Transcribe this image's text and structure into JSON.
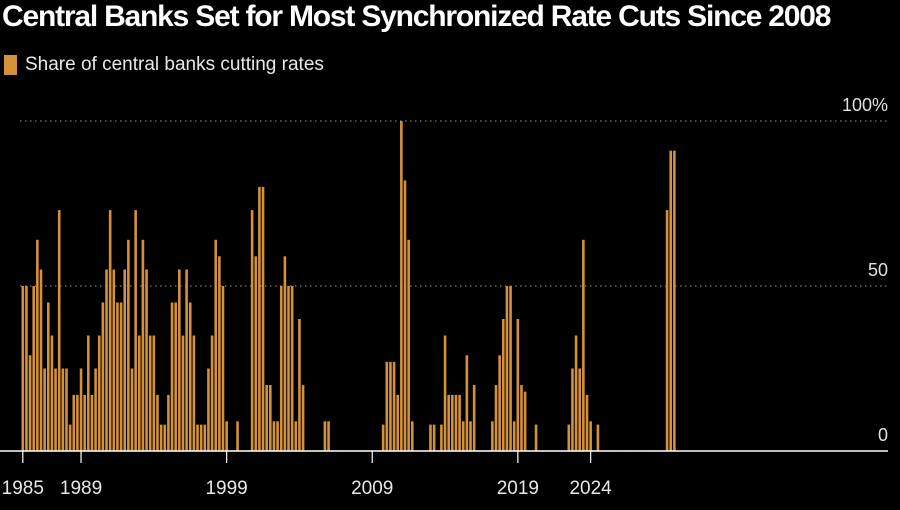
{
  "chart_data": {
    "type": "bar",
    "title": "Central Banks Set for Most Synchronized Rate Cuts Since 2008",
    "legend": "Share of central banks cutting rates",
    "color": "#d4913a",
    "ylim": [
      0,
      100
    ],
    "y_ticks": [
      {
        "value": 100,
        "label": "100%"
      },
      {
        "value": 50,
        "label": "50"
      },
      {
        "value": 0,
        "label": "0"
      }
    ],
    "x_ticks": [
      "1985",
      "1989",
      "1999",
      "2009",
      "2019",
      "2024"
    ],
    "x_start": 1985,
    "periods_per_year": 4,
    "values": [
      50,
      50,
      29,
      50,
      64,
      55,
      25,
      45,
      35,
      25,
      73,
      25,
      25,
      8,
      17,
      17,
      25,
      17,
      35,
      17,
      25,
      35,
      45,
      55,
      73,
      55,
      45,
      45,
      55,
      64,
      25,
      73,
      35,
      64,
      55,
      35,
      35,
      17,
      8,
      8,
      17,
      45,
      45,
      55,
      35,
      55,
      45,
      35,
      8,
      8,
      8,
      25,
      35,
      64,
      59,
      50,
      9,
      0,
      0,
      9,
      0,
      0,
      0,
      73,
      59,
      80,
      80,
      20,
      20,
      9,
      9,
      50,
      59,
      50,
      50,
      9,
      40,
      20,
      0,
      0,
      0,
      0,
      0,
      9,
      9,
      0,
      0,
      0,
      0,
      0,
      0,
      0,
      0,
      0,
      0,
      0,
      0,
      0,
      0,
      8,
      27,
      27,
      27,
      17,
      100,
      82,
      64,
      9,
      0,
      0,
      0,
      0,
      8,
      8,
      0,
      8,
      35,
      17,
      17,
      17,
      17,
      9,
      29,
      9,
      20,
      0,
      0,
      0,
      0,
      9,
      20,
      29,
      40,
      50,
      50,
      9,
      40,
      20,
      18,
      0,
      0,
      8,
      0,
      0,
      0,
      0,
      0,
      0,
      0,
      0,
      8,
      25,
      35,
      25,
      64,
      17,
      9,
      0,
      8,
      0,
      0,
      0,
      0,
      0,
      0,
      0,
      0,
      0,
      0,
      0,
      0,
      0,
      0,
      0,
      0,
      0,
      0,
      73,
      91,
      91
    ]
  }
}
